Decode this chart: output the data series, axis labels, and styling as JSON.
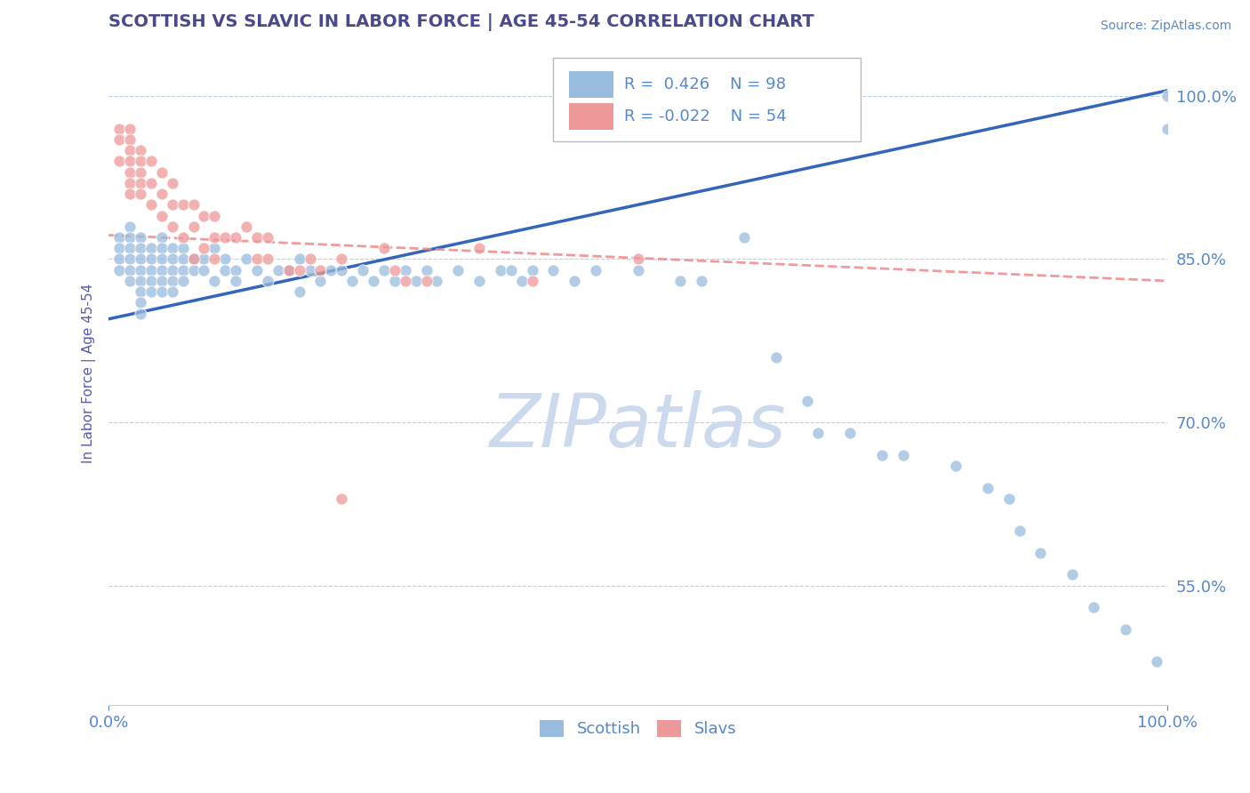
{
  "title": "SCOTTISH VS SLAVIC IN LABOR FORCE | AGE 45-54 CORRELATION CHART",
  "source": "Source: ZipAtlas.com",
  "ylabel": "In Labor Force | Age 45-54",
  "y_tick_labels": [
    "55.0%",
    "70.0%",
    "85.0%",
    "100.0%"
  ],
  "y_tick_values": [
    0.55,
    0.7,
    0.85,
    1.0
  ],
  "xlim": [
    0.0,
    1.0
  ],
  "ylim": [
    0.44,
    1.05
  ],
  "title_color": "#4a4a8a",
  "axis_label_color": "#5a5aaa",
  "tick_color": "#5588cc",
  "grid_color": "#bbccee",
  "watermark_text": "ZIPatlas",
  "watermark_color": "#cddaee",
  "legend_R_blue": "0.426",
  "legend_N_blue": "98",
  "legend_R_pink": "-0.022",
  "legend_N_pink": "54",
  "blue_color": "#99bbdd",
  "pink_color": "#ee9999",
  "trend_blue_color": "#3366bb",
  "trend_pink_color": "#ee8888",
  "blue_trend_x0": 0.0,
  "blue_trend_y0": 0.795,
  "blue_trend_x1": 1.0,
  "blue_trend_y1": 1.005,
  "pink_trend_x0": 0.0,
  "pink_trend_y0": 0.872,
  "pink_trend_x1": 1.0,
  "pink_trend_y1": 0.83,
  "blue_scatter_x": [
    0.01,
    0.01,
    0.01,
    0.01,
    0.02,
    0.02,
    0.02,
    0.02,
    0.02,
    0.02,
    0.03,
    0.03,
    0.03,
    0.03,
    0.03,
    0.03,
    0.03,
    0.03,
    0.04,
    0.04,
    0.04,
    0.04,
    0.04,
    0.05,
    0.05,
    0.05,
    0.05,
    0.05,
    0.05,
    0.06,
    0.06,
    0.06,
    0.06,
    0.06,
    0.07,
    0.07,
    0.07,
    0.07,
    0.08,
    0.08,
    0.09,
    0.09,
    0.1,
    0.1,
    0.11,
    0.11,
    0.12,
    0.12,
    0.13,
    0.14,
    0.15,
    0.16,
    0.17,
    0.18,
    0.18,
    0.19,
    0.2,
    0.21,
    0.22,
    0.23,
    0.24,
    0.25,
    0.26,
    0.27,
    0.28,
    0.29,
    0.3,
    0.31,
    0.33,
    0.35,
    0.37,
    0.38,
    0.39,
    0.4,
    0.42,
    0.44,
    0.46,
    0.5,
    0.54,
    0.56,
    0.6,
    0.63,
    0.66,
    0.67,
    0.7,
    0.73,
    0.75,
    0.8,
    0.83,
    0.85,
    0.86,
    0.88,
    0.91,
    0.93,
    0.96,
    0.99,
    1.0,
    1.0
  ],
  "blue_scatter_y": [
    0.87,
    0.86,
    0.85,
    0.84,
    0.88,
    0.87,
    0.86,
    0.85,
    0.84,
    0.83,
    0.87,
    0.86,
    0.85,
    0.84,
    0.83,
    0.82,
    0.81,
    0.8,
    0.86,
    0.85,
    0.84,
    0.83,
    0.82,
    0.87,
    0.86,
    0.85,
    0.84,
    0.83,
    0.82,
    0.86,
    0.85,
    0.84,
    0.83,
    0.82,
    0.86,
    0.85,
    0.84,
    0.83,
    0.85,
    0.84,
    0.85,
    0.84,
    0.86,
    0.83,
    0.85,
    0.84,
    0.84,
    0.83,
    0.85,
    0.84,
    0.83,
    0.84,
    0.84,
    0.85,
    0.82,
    0.84,
    0.83,
    0.84,
    0.84,
    0.83,
    0.84,
    0.83,
    0.84,
    0.83,
    0.84,
    0.83,
    0.84,
    0.83,
    0.84,
    0.83,
    0.84,
    0.84,
    0.83,
    0.84,
    0.84,
    0.83,
    0.84,
    0.84,
    0.83,
    0.83,
    0.87,
    0.76,
    0.72,
    0.69,
    0.69,
    0.67,
    0.67,
    0.66,
    0.64,
    0.63,
    0.6,
    0.58,
    0.56,
    0.53,
    0.51,
    0.48,
    1.0,
    0.97
  ],
  "pink_scatter_x": [
    0.01,
    0.01,
    0.01,
    0.02,
    0.02,
    0.02,
    0.02,
    0.02,
    0.02,
    0.02,
    0.03,
    0.03,
    0.03,
    0.03,
    0.03,
    0.04,
    0.04,
    0.04,
    0.05,
    0.05,
    0.05,
    0.06,
    0.06,
    0.06,
    0.07,
    0.07,
    0.08,
    0.08,
    0.08,
    0.09,
    0.09,
    0.1,
    0.1,
    0.1,
    0.11,
    0.12,
    0.13,
    0.14,
    0.14,
    0.15,
    0.15,
    0.17,
    0.18,
    0.19,
    0.2,
    0.22,
    0.22,
    0.26,
    0.27,
    0.28,
    0.3,
    0.35,
    0.4,
    0.5
  ],
  "pink_scatter_y": [
    0.97,
    0.96,
    0.94,
    0.97,
    0.96,
    0.95,
    0.94,
    0.93,
    0.92,
    0.91,
    0.95,
    0.94,
    0.93,
    0.92,
    0.91,
    0.94,
    0.92,
    0.9,
    0.93,
    0.91,
    0.89,
    0.92,
    0.9,
    0.88,
    0.9,
    0.87,
    0.9,
    0.88,
    0.85,
    0.89,
    0.86,
    0.89,
    0.87,
    0.85,
    0.87,
    0.87,
    0.88,
    0.87,
    0.85,
    0.87,
    0.85,
    0.84,
    0.84,
    0.85,
    0.84,
    0.85,
    0.63,
    0.86,
    0.84,
    0.83,
    0.83,
    0.86,
    0.83,
    0.85
  ]
}
